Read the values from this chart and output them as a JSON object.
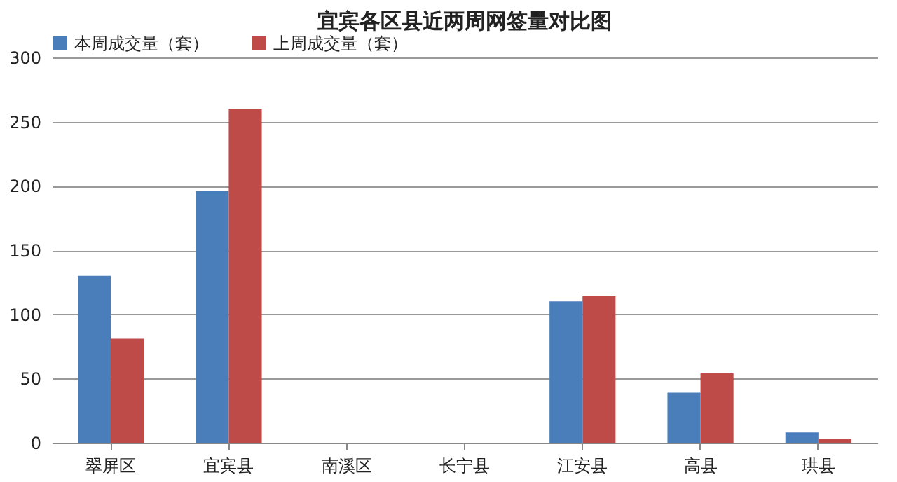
{
  "chart_data": {
    "type": "bar",
    "title": "宜宾各区县近两周网签量对比图",
    "categories": [
      "翠屏区",
      "宜宾县",
      "南溪区",
      "长宁县",
      "江安县",
      "高县",
      "珙县"
    ],
    "series": [
      {
        "name": "本周成交量（套）",
        "color": "#4a7ebb",
        "values": [
          130,
          196,
          null,
          null,
          110,
          39,
          8
        ]
      },
      {
        "name": "上周成交量（套）",
        "color": "#be4b48",
        "values": [
          81,
          260,
          null,
          null,
          114,
          54,
          3
        ]
      }
    ],
    "ylim": [
      0,
      300
    ],
    "yticks": [
      0,
      50,
      100,
      150,
      200,
      250,
      300
    ],
    "grid": "y",
    "legend": "top"
  }
}
